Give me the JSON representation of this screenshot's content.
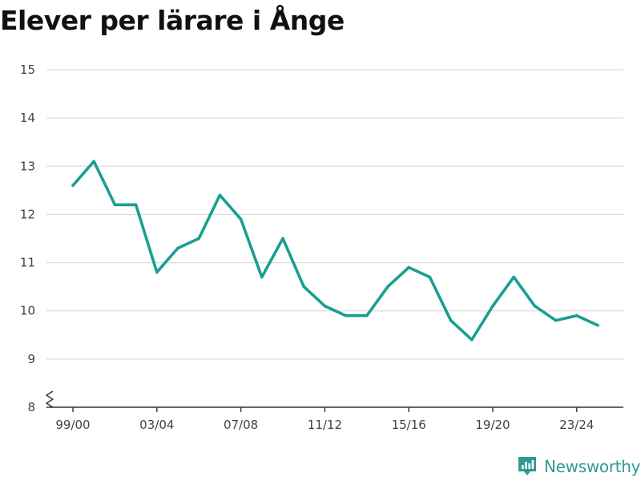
{
  "chart_data": {
    "type": "line",
    "title": "Elever per lärare i Ånge",
    "xlabel": "",
    "ylabel": "",
    "x": [
      "99/00",
      "00/01",
      "01/02",
      "02/03",
      "03/04",
      "04/05",
      "05/06",
      "06/07",
      "07/08",
      "08/09",
      "09/10",
      "10/11",
      "11/12",
      "12/13",
      "13/14",
      "14/15",
      "15/16",
      "16/17",
      "17/18",
      "18/19",
      "19/20",
      "20/21",
      "21/22",
      "22/23",
      "23/24",
      "24/25"
    ],
    "values": [
      12.6,
      13.1,
      12.2,
      12.2,
      10.8,
      11.3,
      11.5,
      12.4,
      11.9,
      10.7,
      11.5,
      10.5,
      10.1,
      9.9,
      9.9,
      10.5,
      10.9,
      10.7,
      9.8,
      9.4,
      10.1,
      10.7,
      10.1,
      9.8,
      9.9,
      9.7
    ],
    "x_tick_labels": [
      "99/00",
      "03/04",
      "07/08",
      "11/12",
      "15/16",
      "19/20",
      "23/24"
    ],
    "y_ticks": [
      8,
      9,
      10,
      11,
      12,
      13,
      14,
      15
    ],
    "ylim": [
      8,
      15
    ],
    "axis_break": true,
    "grid": true,
    "line_color": "#1a9e92"
  },
  "branding": {
    "name": "Newsworthy",
    "color": "#2f9b8e"
  }
}
